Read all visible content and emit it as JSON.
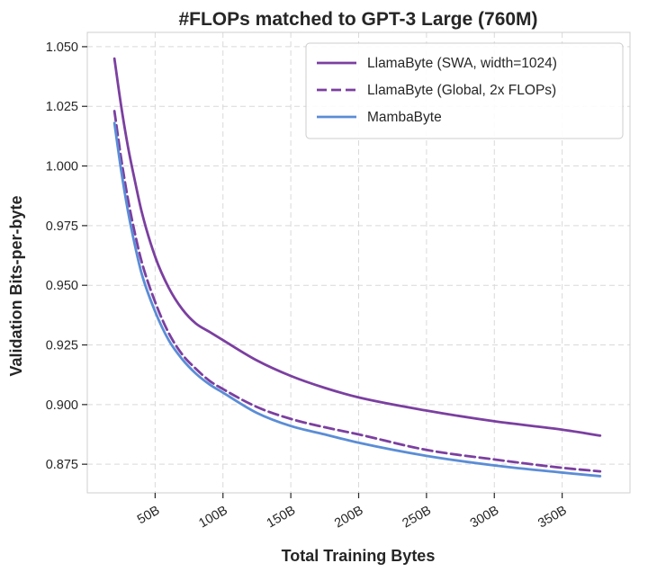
{
  "chart_data": {
    "type": "line",
    "title": "#FLOPs matched to GPT-3 Large (760M)",
    "xlabel": "Total Training Bytes",
    "ylabel": "Validation Bits-per-byte",
    "xlim": [
      0,
      400
    ],
    "ylim": [
      0.863,
      1.056
    ],
    "x_ticks": [
      50,
      100,
      150,
      200,
      250,
      300,
      350
    ],
    "x_tick_labels": [
      "50B",
      "100B",
      "150B",
      "200B",
      "250B",
      "300B",
      "350B"
    ],
    "y_ticks": [
      0.875,
      0.9,
      0.925,
      0.95,
      0.975,
      1.0,
      1.025,
      1.05
    ],
    "y_tick_labels": [
      "0.875",
      "0.900",
      "0.925",
      "0.950",
      "0.975",
      "1.000",
      "1.025",
      "1.050"
    ],
    "grid": true,
    "legend_position": "top-right",
    "series": [
      {
        "name": "LlamaByte (SWA, width=1024)",
        "color": "#7b3fa0",
        "dash": "solid",
        "x": [
          20,
          25,
          30,
          35,
          40,
          50,
          60,
          70,
          80,
          90,
          100,
          125,
          150,
          175,
          200,
          250,
          300,
          350,
          378
        ],
        "y": [
          1.045,
          1.025,
          1.008,
          0.994,
          0.981,
          0.962,
          0.949,
          0.94,
          0.934,
          0.9305,
          0.927,
          0.9185,
          0.912,
          0.907,
          0.903,
          0.8975,
          0.893,
          0.8895,
          0.887
        ]
      },
      {
        "name": "LlamaByte (Global, 2x FLOPs)",
        "color": "#7b3fa0",
        "dash": "dashed",
        "x": [
          20,
          25,
          30,
          35,
          40,
          50,
          60,
          70,
          80,
          90,
          100,
          125,
          150,
          175,
          200,
          250,
          300,
          350,
          378
        ],
        "y": [
          1.023,
          1.003,
          0.986,
          0.972,
          0.96,
          0.943,
          0.93,
          0.921,
          0.915,
          0.91,
          0.9065,
          0.899,
          0.894,
          0.8905,
          0.8875,
          0.881,
          0.877,
          0.8735,
          0.872
        ]
      },
      {
        "name": "MambaByte",
        "color": "#5b8dd6",
        "dash": "solid",
        "x": [
          20,
          25,
          30,
          35,
          40,
          50,
          60,
          70,
          80,
          90,
          100,
          125,
          150,
          175,
          200,
          250,
          300,
          350,
          378
        ],
        "y": [
          1.018,
          0.998,
          0.981,
          0.967,
          0.955,
          0.939,
          0.927,
          0.919,
          0.913,
          0.9085,
          0.905,
          0.8965,
          0.891,
          0.8875,
          0.884,
          0.8785,
          0.8745,
          0.8715,
          0.87
        ]
      }
    ]
  }
}
